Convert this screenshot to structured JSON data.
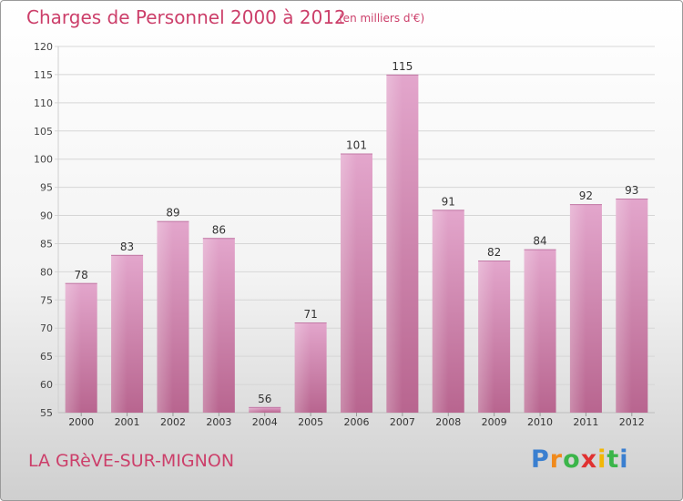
{
  "chart_data": {
    "type": "bar",
    "title": "Charges de Personnel 2000 à 2012",
    "subtitle": "(en milliers d'€)",
    "categories": [
      "2000",
      "2001",
      "2002",
      "2003",
      "2004",
      "2005",
      "2006",
      "2007",
      "2008",
      "2009",
      "2010",
      "2011",
      "2012"
    ],
    "values": [
      78,
      83,
      89,
      86,
      56,
      71,
      101,
      115,
      91,
      82,
      84,
      92,
      93
    ],
    "xlabel": "",
    "ylabel": "",
    "ylim": [
      55,
      120
    ],
    "yticks": [
      55,
      60,
      65,
      70,
      75,
      80,
      85,
      90,
      95,
      100,
      105,
      110,
      115,
      120
    ],
    "grid": true,
    "bar_color": "#d98ab8"
  },
  "footer": {
    "place": "LA GRèVE-SUR-MIGNON",
    "logo_letters": [
      "P",
      "r",
      "o",
      "x",
      "i",
      "t",
      "i"
    ],
    "logo_colors": [
      "#3a7fd0",
      "#f08a1c",
      "#3bb54a",
      "#e03131",
      "#f2b705",
      "#3bb54a",
      "#3a7fd0"
    ]
  }
}
